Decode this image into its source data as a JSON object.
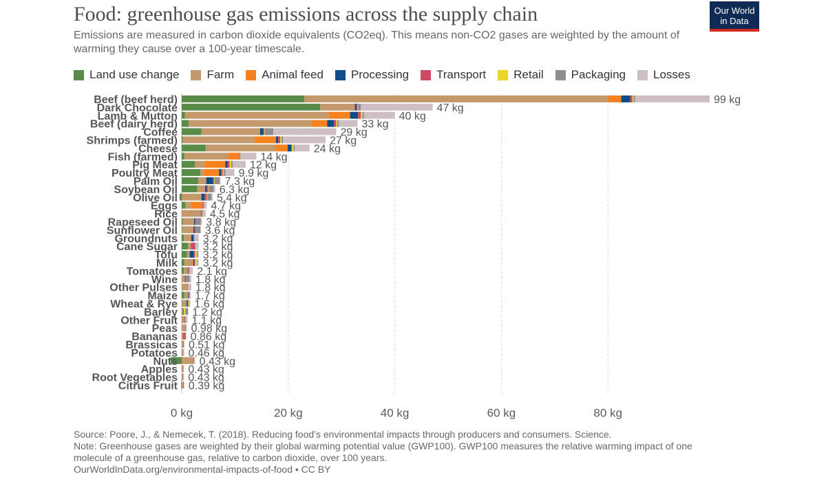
{
  "header": {
    "title": "Food: greenhouse gas emissions across the supply chain",
    "subtitle": "Emissions are measured in carbon dioxide equivalents (CO2eq). This means non-CO2 gases are weighted by the amount of warming they cause over a 100-year timescale.",
    "logo_line1": "Our World",
    "logo_line2": "in Data"
  },
  "footer": {
    "source": "Source: Poore, J., & Nemecek, T. (2018). Reducing food’s environmental impacts through producers and consumers. Science.",
    "note_line1": "Note: Greenhouse gases are weighted by their global warming potential value (GWP100). GWP100 measures the relative warming impact of one",
    "note_line2": "molecule of a greenhouse gas, relative to carbon dioxide, over 100 years.",
    "url": "OurWorldInData.org/environmental-impacts-of-food • CC BY"
  },
  "chart_data": {
    "type": "bar",
    "orientation": "horizontal",
    "stacked": true,
    "title": "Food: greenhouse gas emissions across the supply chain",
    "xlim": [
      0,
      100
    ],
    "x_ticks": [
      0,
      20,
      40,
      60,
      80
    ],
    "x_tick_labels": [
      "0 kg",
      "20 kg",
      "40 kg",
      "60 kg",
      "80 kg"
    ],
    "grid": "vertical dashed",
    "legend_position": "top",
    "series": [
      {
        "name": "Land use change",
        "color": "#5a8b48"
      },
      {
        "name": "Farm",
        "color": "#c49a6c"
      },
      {
        "name": "Animal feed",
        "color": "#f5821f"
      },
      {
        "name": "Processing",
        "color": "#0f4c8a"
      },
      {
        "name": "Transport",
        "color": "#d04a66"
      },
      {
        "name": "Retail",
        "color": "#ead729"
      },
      {
        "name": "Packaging",
        "color": "#8e8e8e"
      },
      {
        "name": "Losses",
        "color": "#cdbfc4"
      }
    ],
    "categories": [
      {
        "name": "Beef (beef herd)",
        "label": "99 kg",
        "values": [
          23,
          57,
          2.5,
          1.7,
          0.4,
          0.2,
          0.3,
          14
        ]
      },
      {
        "name": "Dark Chocolate",
        "label": "47 kg",
        "values": [
          26,
          6.5,
          0,
          0.3,
          0.2,
          0.1,
          0.5,
          13.5
        ]
      },
      {
        "name": "Lamb & Mutton",
        "label": "40 kg",
        "values": [
          0.6,
          27,
          4,
          1.5,
          0.5,
          0.3,
          0.3,
          5.8
        ]
      },
      {
        "name": "Beef (dairy herd)",
        "label": "33 kg",
        "values": [
          1.3,
          23,
          3,
          1.3,
          0.4,
          0.2,
          0.3,
          3.5
        ]
      },
      {
        "name": "Coffee",
        "label": "29 kg",
        "values": [
          3.7,
          11,
          0,
          0.6,
          0.2,
          0.1,
          1.6,
          11.8
        ]
      },
      {
        "name": "Shrimps (farmed)",
        "label": "27 kg",
        "values": [
          0.2,
          13.5,
          4,
          0.4,
          0.4,
          0.2,
          0.3,
          8
        ]
      },
      {
        "name": "Cheese",
        "label": "24 kg",
        "values": [
          4.5,
          13.1,
          2.3,
          0.7,
          0.1,
          0.3,
          0.2,
          2.8
        ]
      },
      {
        "name": "Fish (farmed)",
        "label": "14 kg",
        "values": [
          0.5,
          8.2,
          2,
          0,
          0.2,
          0.1,
          0.1,
          2.9
        ]
      },
      {
        "name": "Pig Meat",
        "label": "12 kg",
        "values": [
          2.5,
          1.8,
          3.9,
          0.4,
          0.4,
          0.3,
          0.3,
          2.4
        ]
      },
      {
        "name": "Poultry Meat",
        "label": "9.9 kg",
        "values": [
          3.5,
          0.6,
          2.9,
          0.4,
          0.3,
          0.2,
          0.3,
          1.7
        ]
      },
      {
        "name": "Palm Oil",
        "label": "7.3 kg",
        "values": [
          3.1,
          1.5,
          0,
          1.3,
          0.2,
          0.1,
          0.9,
          0.2
        ]
      },
      {
        "name": "Soybean Oil",
        "label": "6.3 kg",
        "values": [
          2.9,
          1.5,
          0,
          0.3,
          0.3,
          0.1,
          0.9,
          0.3
        ]
      },
      {
        "name": "Olive Oil",
        "label": "5.4 kg",
        "values": [
          -0.4,
          3.7,
          0,
          0.6,
          0.4,
          0.1,
          0.8,
          0.2
        ]
      },
      {
        "name": "Eggs",
        "label": "4.7 kg",
        "values": [
          0.7,
          1,
          2.2,
          0,
          0.1,
          0,
          0.2,
          0.5
        ]
      },
      {
        "name": "Rice",
        "label": "4.5 kg",
        "values": [
          0,
          3.6,
          0,
          0.1,
          0.1,
          0.1,
          0.1,
          0.5
        ]
      },
      {
        "name": "Rapeseed Oil",
        "label": "3.8 kg",
        "values": [
          0.2,
          2.1,
          0,
          0.2,
          0.2,
          0,
          0.9,
          0.2
        ]
      },
      {
        "name": "Sunflower Oil",
        "label": "3.6 kg",
        "values": [
          0.1,
          2.1,
          0,
          0.2,
          0.2,
          0,
          0.9,
          0.1
        ]
      },
      {
        "name": "Groundnuts",
        "label": "3.2 kg",
        "values": [
          0.4,
          1.4,
          0,
          0.4,
          0.1,
          0,
          0.1,
          0.8
        ]
      },
      {
        "name": "Cane Sugar",
        "label": "3.2 kg",
        "values": [
          1.2,
          0.5,
          0,
          0,
          0.8,
          0,
          0.1,
          0.6
        ]
      },
      {
        "name": "Tofu",
        "label": "3.2 kg",
        "values": [
          1,
          0.5,
          0,
          0.8,
          0.2,
          0.3,
          0.2,
          0.2
        ]
      },
      {
        "name": "Milk",
        "label": "3.2 kg",
        "values": [
          0.5,
          1.5,
          0.2,
          0.2,
          0.1,
          0.3,
          0.1,
          0.3
        ]
      },
      {
        "name": "Tomatoes",
        "label": "2.1 kg",
        "values": [
          0.4,
          0.7,
          0,
          0,
          0.2,
          0,
          0.2,
          0.6
        ]
      },
      {
        "name": "Wine",
        "label": "1.8 kg",
        "values": [
          0,
          0.6,
          0,
          0.1,
          0.1,
          0,
          0.7,
          0.3
        ]
      },
      {
        "name": "Other Pulses",
        "label": "1.8 kg",
        "values": [
          0,
          1.1,
          0,
          0,
          0.1,
          0,
          0,
          0.6
        ]
      },
      {
        "name": "Maize",
        "label": "1.7 kg",
        "values": [
          0.5,
          0.7,
          0,
          0.1,
          0.1,
          0,
          0.1,
          0.2
        ]
      },
      {
        "name": "Wheat & Rye",
        "label": "1.6 kg",
        "values": [
          0.1,
          0.8,
          0,
          0.2,
          0.1,
          0.1,
          0.1,
          0.2
        ]
      },
      {
        "name": "Barley",
        "label": "1.2 kg",
        "values": [
          0,
          0.2,
          0,
          0.1,
          0.1,
          0.3,
          0.5,
          0
        ]
      },
      {
        "name": "Other Fruit",
        "label": "1.1 kg",
        "values": [
          0.1,
          0.4,
          0,
          0,
          0.2,
          0,
          0,
          0.4
        ]
      },
      {
        "name": "Peas",
        "label": "0.98 kg",
        "values": [
          0,
          0.7,
          0,
          0,
          0.1,
          0,
          0,
          0.18
        ]
      },
      {
        "name": "Bananas",
        "label": "0.86 kg",
        "values": [
          0,
          0.3,
          0,
          0.1,
          0.3,
          0,
          0.1,
          0.06
        ]
      },
      {
        "name": "Brassicas",
        "label": "0.51 kg",
        "values": [
          0,
          0.3,
          0,
          0,
          0.1,
          0,
          0,
          0.11
        ]
      },
      {
        "name": "Potatoes",
        "label": "0.46 kg",
        "values": [
          0,
          0.2,
          0,
          0,
          0.1,
          0,
          0,
          0.16
        ]
      },
      {
        "name": "Nuts",
        "label": "0.43 kg",
        "values": [
          -2.1,
          2.1,
          0,
          0,
          0.1,
          0,
          0.1,
          0.23
        ]
      },
      {
        "name": "Apples",
        "label": "0.43 kg",
        "values": [
          0,
          0.2,
          0,
          0,
          0.1,
          0,
          0,
          0.13
        ]
      },
      {
        "name": "Root Vegetables",
        "label": "0.43 kg",
        "values": [
          0,
          0.2,
          0,
          0,
          0.1,
          0,
          0,
          0.13
        ]
      },
      {
        "name": "Citrus Fruit",
        "label": "0.39 kg",
        "values": [
          -0.1,
          0.3,
          0,
          0,
          0.1,
          0,
          0,
          0.09
        ]
      }
    ]
  }
}
